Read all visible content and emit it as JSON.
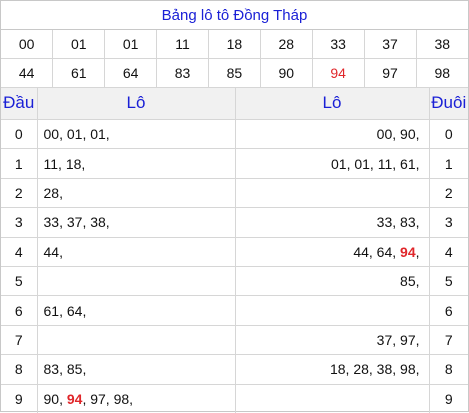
{
  "title": "Bảng lô tô Đồng Tháp",
  "numbers": {
    "row1": [
      "00",
      "01",
      "01",
      "11",
      "18",
      "28",
      "33",
      "37",
      "38"
    ],
    "row2": [
      "44",
      "61",
      "64",
      "83",
      "85",
      "90",
      "94",
      "97",
      "98"
    ],
    "highlight_color": "#e0262a"
  },
  "table": {
    "headers": {
      "dau": "Đầu",
      "lo_left": "Lô",
      "lo_right": "Lô",
      "duoi": "Đuôi"
    },
    "rows": [
      {
        "digit": "0",
        "left": [
          "00",
          "01",
          "01"
        ],
        "right": [
          "00",
          "90"
        ]
      },
      {
        "digit": "1",
        "left": [
          "11",
          "18"
        ],
        "right": [
          "01",
          "01",
          "11",
          "61"
        ]
      },
      {
        "digit": "2",
        "left": [
          "28"
        ],
        "right": []
      },
      {
        "digit": "3",
        "left": [
          "33",
          "37",
          "38"
        ],
        "right": [
          "33",
          "83"
        ]
      },
      {
        "digit": "4",
        "left": [
          "44"
        ],
        "right": [
          "44",
          "64",
          "94"
        ]
      },
      {
        "digit": "5",
        "left": [],
        "right": [
          "85"
        ]
      },
      {
        "digit": "6",
        "left": [
          "61",
          "64"
        ],
        "right": []
      },
      {
        "digit": "7",
        "left": [],
        "right": [
          "37",
          "97"
        ]
      },
      {
        "digit": "8",
        "left": [
          "83",
          "85"
        ],
        "right": [
          "18",
          "28",
          "38",
          "98"
        ]
      },
      {
        "digit": "9",
        "left": [
          "90",
          "94",
          "97",
          "98"
        ],
        "right": []
      }
    ],
    "special_number": "94"
  }
}
